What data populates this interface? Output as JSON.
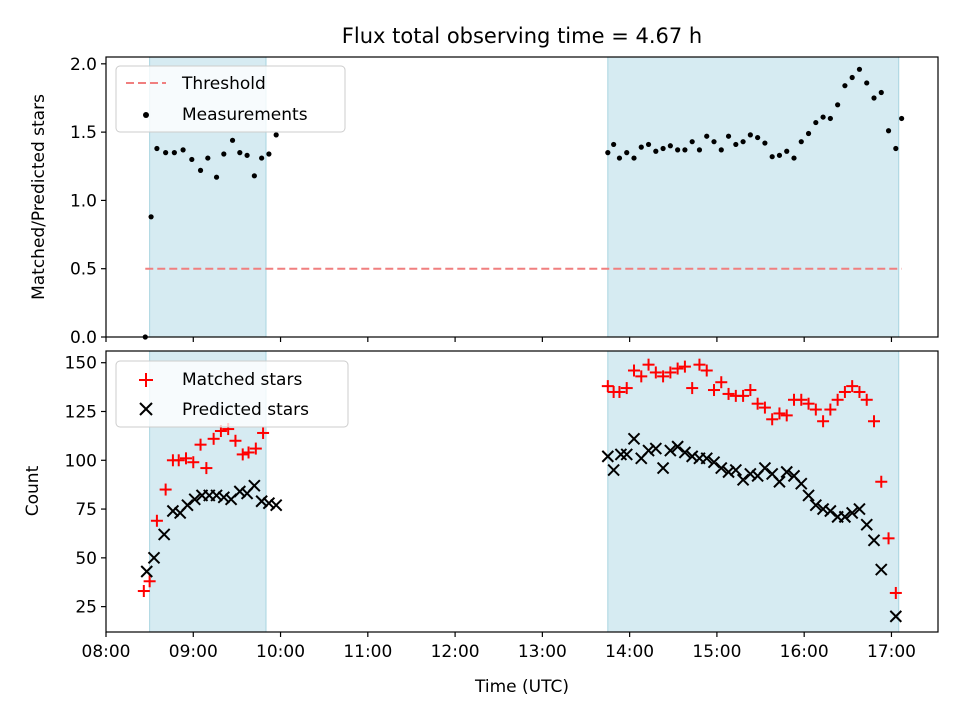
{
  "chart_data": [
    {
      "type": "scatter",
      "title": "Flux total observing time = 4.67 h",
      "ylabel": "Matched/Predicted stars",
      "xlabel": "",
      "xlim": [
        "08:00",
        "17:32"
      ],
      "ylim": [
        0,
        2.05
      ],
      "yticks": [
        "0.0",
        "0.5",
        "1.0",
        "1.5",
        "2.0"
      ],
      "legend_position": "upper-left",
      "shaded_intervals": [
        [
          "08:30",
          "09:50"
        ],
        [
          "13:45",
          "17:05"
        ]
      ],
      "threshold": {
        "name": "Threshold",
        "value": 0.5,
        "x_start": "08:27",
        "x_end": "17:07",
        "color": "#f07f7f"
      },
      "series": [
        {
          "name": "Measurements",
          "marker": "dot",
          "color": "#000000",
          "points": [
            [
              "08:27",
              0.0
            ],
            [
              "08:31",
              0.88
            ],
            [
              "08:35",
              1.38
            ],
            [
              "08:41",
              1.35
            ],
            [
              "08:47",
              1.35
            ],
            [
              "08:53",
              1.37
            ],
            [
              "08:59",
              1.3
            ],
            [
              "09:05",
              1.22
            ],
            [
              "09:10",
              1.31
            ],
            [
              "09:16",
              1.17
            ],
            [
              "09:21",
              1.34
            ],
            [
              "09:27",
              1.44
            ],
            [
              "09:32",
              1.35
            ],
            [
              "09:37",
              1.33
            ],
            [
              "09:42",
              1.18
            ],
            [
              "09:47",
              1.31
            ],
            [
              "09:52",
              1.34
            ],
            [
              "09:57",
              1.48
            ],
            [
              "13:45",
              1.35
            ],
            [
              "13:49",
              1.41
            ],
            [
              "13:53",
              1.31
            ],
            [
              "13:58",
              1.35
            ],
            [
              "14:03",
              1.31
            ],
            [
              "14:08",
              1.39
            ],
            [
              "14:13",
              1.41
            ],
            [
              "14:18",
              1.36
            ],
            [
              "14:23",
              1.38
            ],
            [
              "14:28",
              1.4
            ],
            [
              "14:33",
              1.37
            ],
            [
              "14:38",
              1.37
            ],
            [
              "14:43",
              1.43
            ],
            [
              "14:48",
              1.37
            ],
            [
              "14:53",
              1.47
            ],
            [
              "14:58",
              1.43
            ],
            [
              "15:03",
              1.37
            ],
            [
              "15:08",
              1.47
            ],
            [
              "15:13",
              1.41
            ],
            [
              "15:18",
              1.43
            ],
            [
              "15:23",
              1.48
            ],
            [
              "15:28",
              1.46
            ],
            [
              "15:33",
              1.42
            ],
            [
              "15:38",
              1.32
            ],
            [
              "15:43",
              1.33
            ],
            [
              "15:48",
              1.36
            ],
            [
              "15:53",
              1.31
            ],
            [
              "15:58",
              1.43
            ],
            [
              "16:03",
              1.49
            ],
            [
              "16:08",
              1.57
            ],
            [
              "16:13",
              1.61
            ],
            [
              "16:18",
              1.6
            ],
            [
              "16:23",
              1.7
            ],
            [
              "16:28",
              1.84
            ],
            [
              "16:33",
              1.9
            ],
            [
              "16:38",
              1.96
            ],
            [
              "16:43",
              1.86
            ],
            [
              "16:48",
              1.75
            ],
            [
              "16:53",
              1.79
            ],
            [
              "16:58",
              1.51
            ],
            [
              "17:03",
              1.38
            ],
            [
              "17:07",
              1.6
            ]
          ]
        }
      ]
    },
    {
      "type": "scatter",
      "title": "",
      "ylabel": "Count",
      "xlabel": "Time (UTC)",
      "xlim": [
        "08:00",
        "17:32"
      ],
      "ylim": [
        12,
        156
      ],
      "yticks": [
        "25",
        "50",
        "75",
        "100",
        "125",
        "150"
      ],
      "xticks": [
        "08:00",
        "09:00",
        "10:00",
        "11:00",
        "12:00",
        "13:00",
        "14:00",
        "15:00",
        "16:00",
        "17:00"
      ],
      "legend_position": "upper-left",
      "shaded_intervals": [
        [
          "08:30",
          "09:50"
        ],
        [
          "13:45",
          "17:05"
        ]
      ],
      "series": [
        {
          "name": "Matched stars",
          "marker": "plus",
          "color": "#ff0000",
          "points": [
            [
              "08:26",
              33
            ],
            [
              "08:30",
              38
            ],
            [
              "08:35",
              69
            ],
            [
              "08:41",
              85
            ],
            [
              "08:46",
              100
            ],
            [
              "08:50",
              100
            ],
            [
              "08:55",
              101
            ],
            [
              "09:00",
              99
            ],
            [
              "09:05",
              108
            ],
            [
              "09:09",
              96
            ],
            [
              "09:14",
              111
            ],
            [
              "09:19",
              115
            ],
            [
              "09:24",
              116
            ],
            [
              "09:29",
              110
            ],
            [
              "09:34",
              103
            ],
            [
              "09:38",
              104
            ],
            [
              "09:43",
              106
            ],
            [
              "09:48",
              114
            ],
            [
              "13:45",
              138
            ],
            [
              "13:49",
              135
            ],
            [
              "13:53",
              135
            ],
            [
              "13:58",
              137
            ],
            [
              "14:03",
              146
            ],
            [
              "14:08",
              143
            ],
            [
              "14:13",
              149
            ],
            [
              "14:18",
              145
            ],
            [
              "14:23",
              143
            ],
            [
              "14:28",
              145
            ],
            [
              "14:33",
              147
            ],
            [
              "14:38",
              148
            ],
            [
              "14:43",
              137
            ],
            [
              "14:48",
              149
            ],
            [
              "14:53",
              146
            ],
            [
              "14:58",
              136
            ],
            [
              "15:03",
              140
            ],
            [
              "15:08",
              134
            ],
            [
              "15:13",
              133
            ],
            [
              "15:18",
              133
            ],
            [
              "15:23",
              136
            ],
            [
              "15:28",
              129
            ],
            [
              "15:33",
              127
            ],
            [
              "15:38",
              121
            ],
            [
              "15:43",
              124
            ],
            [
              "15:48",
              123
            ],
            [
              "15:53",
              131
            ],
            [
              "15:58",
              131
            ],
            [
              "16:03",
              129
            ],
            [
              "16:08",
              126
            ],
            [
              "16:13",
              120
            ],
            [
              "16:18",
              126
            ],
            [
              "16:23",
              131
            ],
            [
              "16:28",
              135
            ],
            [
              "16:33",
              138
            ],
            [
              "16:38",
              135
            ],
            [
              "16:43",
              131
            ],
            [
              "16:48",
              120
            ],
            [
              "16:53",
              89
            ],
            [
              "16:58",
              60
            ],
            [
              "17:03",
              32
            ]
          ]
        },
        {
          "name": "Predicted stars",
          "marker": "x",
          "color": "#000000",
          "points": [
            [
              "08:28",
              43
            ],
            [
              "08:33",
              50
            ],
            [
              "08:40",
              62
            ],
            [
              "08:46",
              74
            ],
            [
              "08:51",
              73
            ],
            [
              "08:56",
              77
            ],
            [
              "09:01",
              80
            ],
            [
              "09:06",
              82
            ],
            [
              "09:11",
              82
            ],
            [
              "09:16",
              82
            ],
            [
              "09:21",
              81
            ],
            [
              "09:26",
              80
            ],
            [
              "09:32",
              84
            ],
            [
              "09:37",
              83
            ],
            [
              "09:42",
              87
            ],
            [
              "09:47",
              79
            ],
            [
              "09:52",
              78
            ],
            [
              "09:57",
              77
            ],
            [
              "13:45",
              102
            ],
            [
              "13:49",
              95
            ],
            [
              "13:54",
              103
            ],
            [
              "13:58",
              103
            ],
            [
              "14:03",
              111
            ],
            [
              "14:08",
              101
            ],
            [
              "14:13",
              105
            ],
            [
              "14:18",
              106
            ],
            [
              "14:23",
              96
            ],
            [
              "14:28",
              105
            ],
            [
              "14:33",
              107
            ],
            [
              "14:38",
              104
            ],
            [
              "14:43",
              102
            ],
            [
              "14:48",
              101
            ],
            [
              "14:53",
              101
            ],
            [
              "14:58",
              99
            ],
            [
              "15:03",
              96
            ],
            [
              "15:08",
              94
            ],
            [
              "15:13",
              95
            ],
            [
              "15:18",
              90
            ],
            [
              "15:23",
              93
            ],
            [
              "15:28",
              92
            ],
            [
              "15:33",
              96
            ],
            [
              "15:38",
              93
            ],
            [
              "15:43",
              89
            ],
            [
              "15:48",
              94
            ],
            [
              "15:53",
              92
            ],
            [
              "15:58",
              88
            ],
            [
              "16:03",
              82
            ],
            [
              "16:08",
              77
            ],
            [
              "16:13",
              75
            ],
            [
              "16:18",
              74
            ],
            [
              "16:23",
              71
            ],
            [
              "16:28",
              71
            ],
            [
              "16:33",
              73
            ],
            [
              "16:38",
              75
            ],
            [
              "16:43",
              67
            ],
            [
              "16:48",
              59
            ],
            [
              "16:53",
              44
            ],
            [
              "17:03",
              20
            ]
          ]
        }
      ]
    }
  ]
}
